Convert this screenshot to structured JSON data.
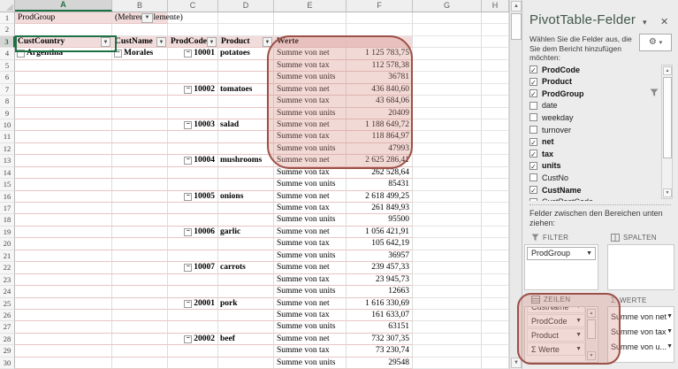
{
  "sheet": {
    "columns": [
      "A",
      "B",
      "C",
      "D",
      "E",
      "F",
      "G",
      "H"
    ],
    "report_filter": {
      "label": "ProdGroup",
      "value": "(Mehrere Elemente)"
    },
    "headers": {
      "country": "CustCountry",
      "name": "CustName",
      "code": "ProdCode",
      "product": "Product",
      "values": "Werte"
    },
    "row_items": {
      "country": "Argentina",
      "name": "Morales"
    },
    "measures": [
      "Summe von net",
      "Summe von tax",
      "Summe von units"
    ],
    "groups": [
      {
        "code": "10001",
        "product": "potatoes",
        "values": [
          "1 125 783,75",
          "112 578,38",
          "36781"
        ]
      },
      {
        "code": "10002",
        "product": "tomatoes",
        "values": [
          "436 840,60",
          "43 684,06",
          "20409"
        ]
      },
      {
        "code": "10003",
        "product": "salad",
        "values": [
          "1 188 649,72",
          "118 864,97",
          "47993"
        ]
      },
      {
        "code": "10004",
        "product": "mushrooms",
        "values": [
          "2 625 286,41",
          "262 528,64",
          "85431"
        ]
      },
      {
        "code": "10005",
        "product": "onions",
        "values": [
          "2 618 499,25",
          "261 849,93",
          "95500"
        ]
      },
      {
        "code": "10006",
        "product": "garlic",
        "values": [
          "1 056 421,91",
          "105 642,19",
          "36957"
        ]
      },
      {
        "code": "10007",
        "product": "carrots",
        "values": [
          "239 457,33",
          "23 945,73",
          "12663"
        ]
      },
      {
        "code": "20001",
        "product": "pork",
        "values": [
          "1 616 330,69",
          "161 633,07",
          "63151"
        ]
      },
      {
        "code": "20002",
        "product": "beef",
        "values": [
          "732 307,35",
          "73 230,74",
          "29548"
        ]
      }
    ]
  },
  "panel": {
    "title": "PivotTable-Felder",
    "subtitle": "Wählen Sie die Felder aus, die Sie dem Bericht hinzufügen möchten:",
    "fields": [
      {
        "label": "ProdCode",
        "checked": true
      },
      {
        "label": "Product",
        "checked": true
      },
      {
        "label": "ProdGroup",
        "checked": true,
        "filtered": true
      },
      {
        "label": "date",
        "checked": false
      },
      {
        "label": "weekday",
        "checked": false
      },
      {
        "label": "turnover",
        "checked": false
      },
      {
        "label": "net",
        "checked": true
      },
      {
        "label": "tax",
        "checked": true
      },
      {
        "label": "units",
        "checked": true
      },
      {
        "label": "CustNo",
        "checked": false
      },
      {
        "label": "CustName",
        "checked": true
      },
      {
        "label": "CustPostCode",
        "checked": false
      }
    ],
    "drag_hint": "Felder zwischen den Bereichen unten ziehen:",
    "areas": {
      "filter": {
        "label": "FILTER",
        "chips": [
          "ProdGroup"
        ]
      },
      "columns": {
        "label": "SPALTEN",
        "chips": []
      },
      "rows": {
        "label": "ZEILEN",
        "chips": [
          "CustName",
          "ProdCode",
          "Product",
          "Σ Werte"
        ]
      },
      "values": {
        "label": "WERTE",
        "chips": [
          "Summe von net",
          "Summe von tax",
          "Summe von u..."
        ]
      }
    }
  },
  "colors": {
    "pivot_header_fill": "#f2dcdb",
    "annotation_border": "#9c5047",
    "selection_green": "#1e7145"
  }
}
